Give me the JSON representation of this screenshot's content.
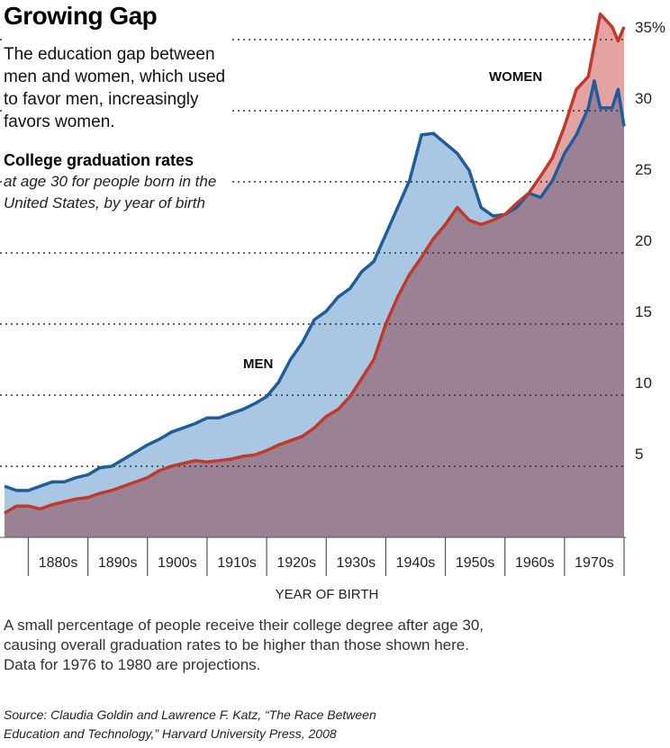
{
  "chart_data": {
    "type": "area",
    "title": "Growing Gap",
    "subtitle": [
      "The education gap between",
      "men and women, which used",
      "to favor men, increasingly",
      "favors women."
    ],
    "heading": "College graduation rates",
    "subheading": [
      "at age 30 for people born in the",
      "United States, by year of birth"
    ],
    "x_label": "YEAR OF BIRTH",
    "note": [
      "A small percentage of people receive their college degree after age 30,",
      "causing overall graduation rates to be higher than those shown here.",
      "Data for 1976 to 1980 are projections."
    ],
    "source": [
      "Source: Claudia Goldin and Lawrence F. Katz, “The Race Between",
      "Education and Technology,” Harvard University Press, 2008"
    ],
    "x": [
      1876,
      1878,
      1880,
      1882,
      1884,
      1886,
      1888,
      1890,
      1892,
      1894,
      1896,
      1898,
      1900,
      1902,
      1904,
      1906,
      1908,
      1910,
      1912,
      1914,
      1916,
      1918,
      1920,
      1922,
      1924,
      1926,
      1928,
      1930,
      1932,
      1934,
      1936,
      1938,
      1940,
      1942,
      1944,
      1946,
      1948,
      1950,
      1952,
      1954,
      1956,
      1958,
      1960,
      1962,
      1964,
      1966,
      1968,
      1970,
      1972,
      1974,
      1975,
      1976,
      1978,
      1979,
      1980
    ],
    "series": [
      {
        "name": "MEN",
        "color": "#1f5c9a",
        "fill": "#a9c6e3",
        "values": [
          3.6,
          3.3,
          3.3,
          3.6,
          3.9,
          3.9,
          4.2,
          4.4,
          4.9,
          5.0,
          5.5,
          6.0,
          6.5,
          6.9,
          7.4,
          7.7,
          8.0,
          8.4,
          8.4,
          8.7,
          9.0,
          9.4,
          9.9,
          10.9,
          12.5,
          13.7,
          15.3,
          15.9,
          16.9,
          17.5,
          18.7,
          19.4,
          21.3,
          23.2,
          25.1,
          28.3,
          28.4,
          27.7,
          27.0,
          25.8,
          23.2,
          22.6,
          22.7,
          23.2,
          24.2,
          23.9,
          25.1,
          27.0,
          28.3,
          30.2,
          32.1,
          30.2,
          30.2,
          31.5,
          28.9
        ]
      },
      {
        "name": "WOMEN",
        "color": "#c0392b",
        "fill": "#e4a3a3",
        "values": [
          1.7,
          2.2,
          2.2,
          2.0,
          2.3,
          2.5,
          2.7,
          2.8,
          3.1,
          3.3,
          3.6,
          3.9,
          4.2,
          4.7,
          5.0,
          5.2,
          5.4,
          5.3,
          5.4,
          5.5,
          5.7,
          5.8,
          6.1,
          6.5,
          6.8,
          7.1,
          7.7,
          8.5,
          9.0,
          9.9,
          11.2,
          12.5,
          15.0,
          16.9,
          18.5,
          19.7,
          21.0,
          22.0,
          23.2,
          22.3,
          22.0,
          22.3,
          22.7,
          23.5,
          24.2,
          25.4,
          26.7,
          28.9,
          31.5,
          32.4,
          34.6,
          36.8,
          35.9,
          34.9,
          35.9
        ]
      }
    ],
    "overlap_color": "#9a8294",
    "xlim": [
      1876,
      1980
    ],
    "xticks": [
      1880,
      1890,
      1900,
      1910,
      1920,
      1930,
      1940,
      1950,
      1960,
      1970,
      1980
    ],
    "decade_labels": [
      "1880s",
      "1890s",
      "1900s",
      "1910s",
      "1920s",
      "1930s",
      "1940s",
      "1950s",
      "1960s",
      "1970s"
    ],
    "ylim": [
      0,
      37
    ],
    "yticks": [
      5,
      10,
      15,
      20,
      25,
      30,
      {
        "value": 35,
        "label": "35%"
      }
    ],
    "grid": true
  }
}
